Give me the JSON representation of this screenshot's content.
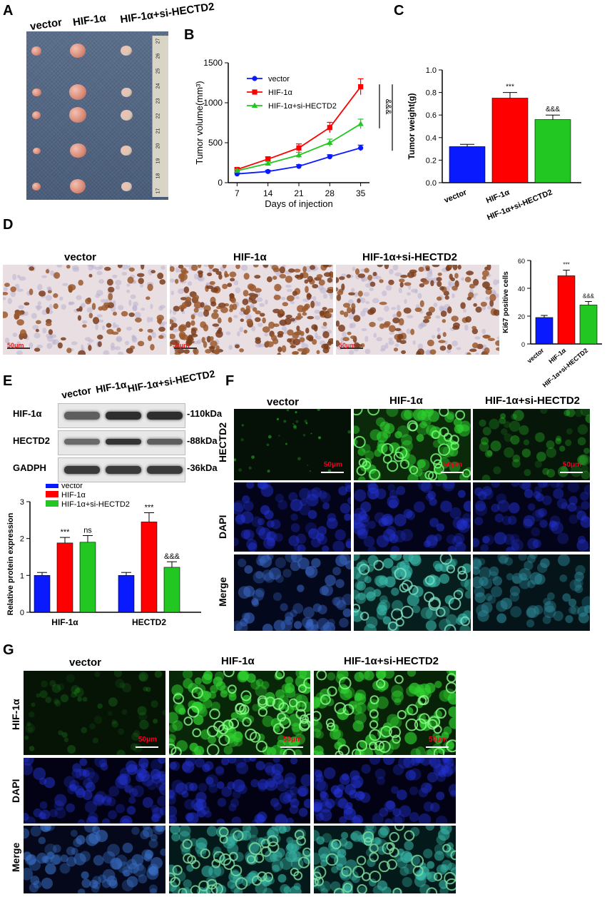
{
  "panels": {
    "A": "A",
    "B": "B",
    "C": "C",
    "D": "D",
    "E": "E",
    "F": "F",
    "G": "G"
  },
  "groups": [
    "vector",
    "HIF-1α",
    "HIF-1α+si-HECTD2"
  ],
  "colors": {
    "vector": "#0a1aff",
    "hif": "#ff0000",
    "si": "#22c722"
  },
  "panelA": {
    "labels": [
      "vector",
      "HIF-1α",
      "HIF-1α+si-HECTD2"
    ],
    "ruler_ticks": [
      "27",
      "26",
      "25",
      "24",
      "23",
      "22",
      "21",
      "20",
      "19",
      "18",
      "17"
    ]
  },
  "scale_text": "50μm",
  "panelD": {
    "headers": [
      "vector",
      "HIF-1α",
      "HIF-1α+si-HECTD2"
    ]
  },
  "panelE": {
    "headers": [
      "vector",
      "HIF-1α",
      "HIF-1α+si-HECTD2"
    ],
    "blots": [
      {
        "protein": "HIF-1α",
        "size": "-110kDa"
      },
      {
        "protein": "HECTD2",
        "size": "-88kDa"
      },
      {
        "protein": "GADPH",
        "size": "-36kDa"
      }
    ]
  },
  "panelF": {
    "headers": [
      "vector",
      "HIF-1α",
      "HIF-1α+si-HECTD2"
    ],
    "rows": [
      "HECTD2",
      "DAPI",
      "Merge"
    ]
  },
  "panelG": {
    "headers": [
      "vector",
      "HIF-1α",
      "HIF-1α+si-HECTD2"
    ],
    "rows": [
      "HIF-1α",
      "DAPI",
      "Merge"
    ]
  },
  "chart_data": [
    {
      "id": "B",
      "type": "line",
      "xlabel": "Days of injection",
      "ylabel": "Tumor volume(mm³)",
      "x": [
        7,
        14,
        21,
        28,
        35
      ],
      "ylim": [
        0,
        1500
      ],
      "yticks": [
        "0",
        "500",
        "1000",
        "1500"
      ],
      "legend": "top-left",
      "series": [
        {
          "name": "vector",
          "values": [
            110,
            140,
            205,
            325,
            435
          ],
          "err": [
            15,
            15,
            20,
            25,
            35
          ]
        },
        {
          "name": "HIF-1α",
          "values": [
            165,
            295,
            435,
            690,
            1200
          ],
          "err": [
            20,
            30,
            50,
            65,
            100
          ]
        },
        {
          "name": "HIF-1α+si-HECTD2",
          "values": [
            150,
            240,
            345,
            500,
            735
          ],
          "err": [
            15,
            25,
            35,
            45,
            60
          ]
        }
      ],
      "annotations": [
        "&&&",
        "***"
      ]
    },
    {
      "id": "C",
      "type": "bar",
      "ylabel": "Tumor weight(g)",
      "categories": [
        "vector",
        "HIF-1α",
        "HIF-1α+si-HECTD2"
      ],
      "values": [
        0.32,
        0.75,
        0.56
      ],
      "err": [
        0.02,
        0.05,
        0.04
      ],
      "ylim": [
        0,
        1.0
      ],
      "yticks": [
        "0.0",
        "0.2",
        "0.4",
        "0.6",
        "0.8",
        "1.0"
      ],
      "annotations": [
        "",
        "***",
        "&&&"
      ]
    },
    {
      "id": "D",
      "type": "bar",
      "ylabel": "Ki67 positive cells",
      "categories": [
        "vector",
        "HIF-1α",
        "HIF-1α+si-HECTD2"
      ],
      "values": [
        19,
        49,
        28
      ],
      "err": [
        1.5,
        4,
        2.5
      ],
      "ylim": [
        0,
        60
      ],
      "yticks": [
        "0",
        "20",
        "40",
        "60"
      ],
      "annotations": [
        "",
        "***",
        "&&&"
      ]
    },
    {
      "id": "E",
      "type": "bar",
      "ylabel": "Relative protein expression",
      "categories": [
        "HIF-1α",
        "HECTD2"
      ],
      "series": [
        {
          "name": "vector",
          "values": [
            1.0,
            1.0
          ],
          "err": [
            0.08,
            0.08
          ]
        },
        {
          "name": "HIF-1α",
          "values": [
            1.88,
            2.45
          ],
          "err": [
            0.15,
            0.25
          ]
        },
        {
          "name": "HIF-1α+si-HECTD2",
          "values": [
            1.9,
            1.22
          ],
          "err": [
            0.18,
            0.15
          ]
        }
      ],
      "ylim": [
        0,
        3
      ],
      "yticks": [
        "0",
        "1",
        "2",
        "3"
      ],
      "annotations": [
        [
          "",
          "***",
          "ns"
        ],
        [
          "",
          "***",
          "&&&"
        ]
      ]
    }
  ]
}
